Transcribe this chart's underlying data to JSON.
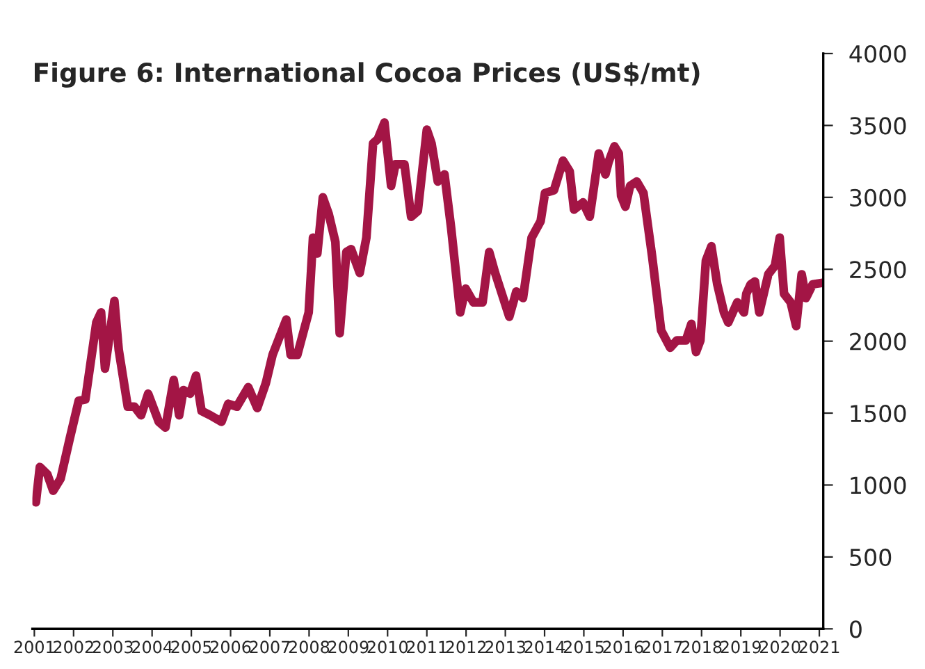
{
  "chart_data": {
    "type": "line",
    "title": "Figure 6: International Cocoa Prices (US$/mt)",
    "x": [
      2001.04,
      2001.14,
      2001.33,
      2001.48,
      2001.67,
      2001.9,
      2002.13,
      2002.3,
      2002.58,
      2002.7,
      2002.8,
      2003.04,
      2003.15,
      2003.38,
      2003.55,
      2003.72,
      2003.9,
      2004.17,
      2004.34,
      2004.55,
      2004.69,
      2004.8,
      2004.97,
      2005.12,
      2005.26,
      2005.48,
      2005.77,
      2005.94,
      2006.16,
      2006.45,
      2006.68,
      2006.9,
      2007.07,
      2007.42,
      2007.53,
      2007.7,
      2007.99,
      2008.1,
      2008.21,
      2008.35,
      2008.5,
      2008.67,
      2008.78,
      2008.95,
      2009.07,
      2009.29,
      2009.46,
      2009.63,
      2009.75,
      2009.92,
      2010.09,
      2010.2,
      2010.43,
      2010.6,
      2010.77,
      2011.0,
      2011.12,
      2011.28,
      2011.45,
      2011.62,
      2011.85,
      2011.99,
      2012.19,
      2012.42,
      2012.59,
      2012.74,
      2013.1,
      2013.28,
      2013.45,
      2013.67,
      2013.9,
      2014.01,
      2014.24,
      2014.47,
      2014.64,
      2014.75,
      2014.98,
      2015.15,
      2015.38,
      2015.55,
      2015.63,
      2015.78,
      2015.89,
      2015.95,
      2016.06,
      2016.18,
      2016.35,
      2016.52,
      2016.74,
      2016.97,
      2017.2,
      2017.37,
      2017.6,
      2017.74,
      2017.86,
      2017.97,
      2018.11,
      2018.25,
      2018.4,
      2018.57,
      2018.68,
      2018.91,
      2019.08,
      2019.14,
      2019.25,
      2019.36,
      2019.47,
      2019.7,
      2019.87,
      2019.99,
      2020.1,
      2020.27,
      2020.41,
      2020.55,
      2020.66,
      2020.83,
      2021.06
    ],
    "series": [
      {
        "color": "#a31545",
        "values": [
          880,
          1125,
          1075,
          960,
          1045,
          1320,
          1585,
          1595,
          2130,
          2200,
          1810,
          2280,
          1940,
          1545,
          1545,
          1485,
          1635,
          1440,
          1400,
          1730,
          1485,
          1660,
          1635,
          1760,
          1515,
          1485,
          1440,
          1565,
          1545,
          1680,
          1535,
          1710,
          1905,
          2150,
          1905,
          1905,
          2200,
          2720,
          2610,
          3000,
          2885,
          2690,
          2055,
          2620,
          2640,
          2475,
          2720,
          3375,
          3405,
          3520,
          3080,
          3230,
          3230,
          2865,
          2905,
          3470,
          3375,
          3110,
          3160,
          2785,
          2200,
          2365,
          2270,
          2270,
          2620,
          2475,
          2170,
          2345,
          2300,
          2720,
          2835,
          3030,
          3050,
          3255,
          3180,
          2915,
          2965,
          2865,
          3305,
          3160,
          3245,
          3355,
          3305,
          3010,
          2935,
          3080,
          3110,
          3030,
          2590,
          2075,
          1955,
          2005,
          2005,
          2120,
          1925,
          2005,
          2560,
          2660,
          2395,
          2200,
          2130,
          2270,
          2200,
          2330,
          2395,
          2415,
          2200,
          2465,
          2525,
          2720,
          2330,
          2270,
          2105,
          2465,
          2300,
          2395,
          2405
        ]
      }
    ],
    "xlim": [
      2000.95,
      2021.1
    ],
    "xticks": [
      2001,
      2002,
      2003,
      2004,
      2005,
      2006,
      2007,
      2008,
      2009,
      2010,
      2011,
      2012,
      2013,
      2014,
      2015,
      2016,
      2017,
      2018,
      2019,
      2020,
      2021
    ],
    "ylim": [
      0,
      4000
    ],
    "yticks": [
      0,
      500,
      1000,
      1500,
      2000,
      2500,
      3000,
      3500,
      4000
    ],
    "grid": false,
    "legend": false,
    "line_style": "solid",
    "marker": "none"
  }
}
